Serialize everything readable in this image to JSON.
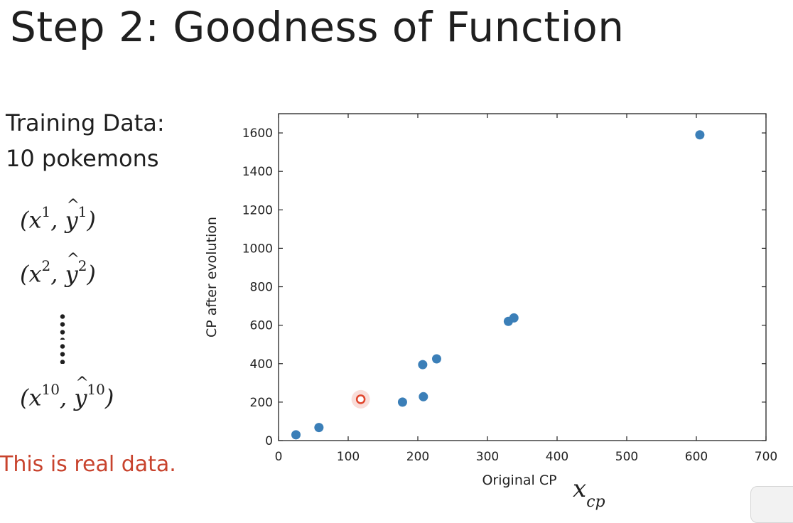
{
  "slide": {
    "title": "Step 2: Goodness of Function",
    "training_line1": "Training Data:",
    "training_line2": "10 pokemons",
    "pairs": [
      {
        "x": "x",
        "sup": "1",
        "y": "y",
        "ysup": "1"
      },
      {
        "x": "x",
        "sup": "2",
        "y": "y",
        "ysup": "2"
      },
      {
        "x": "x",
        "sup": "10",
        "y": "y",
        "ysup": "10"
      }
    ],
    "note": "This is real data.",
    "xcp_main": "x",
    "xcp_sub": "cp"
  },
  "colors": {
    "points": "#3b7fb8",
    "highlight": "#e0452c",
    "note": "#c8432d"
  },
  "chart_data": {
    "type": "scatter",
    "xlabel": "Original CP",
    "ylabel": "CP after evolution",
    "xlim": [
      0,
      700
    ],
    "ylim": [
      0,
      1700
    ],
    "xticks": [
      0,
      100,
      200,
      300,
      400,
      500,
      600,
      700
    ],
    "yticks": [
      0,
      200,
      400,
      600,
      800,
      1000,
      1200,
      1400,
      1600
    ],
    "grid": false,
    "points": [
      {
        "x": 25,
        "y": 30
      },
      {
        "x": 58,
        "y": 68
      },
      {
        "x": 178,
        "y": 200
      },
      {
        "x": 207,
        "y": 395
      },
      {
        "x": 208,
        "y": 228
      },
      {
        "x": 227,
        "y": 425
      },
      {
        "x": 330,
        "y": 620
      },
      {
        "x": 338,
        "y": 638
      },
      {
        "x": 605,
        "y": 1590
      }
    ],
    "highlighted_point": {
      "x": 118,
      "y": 215
    }
  }
}
